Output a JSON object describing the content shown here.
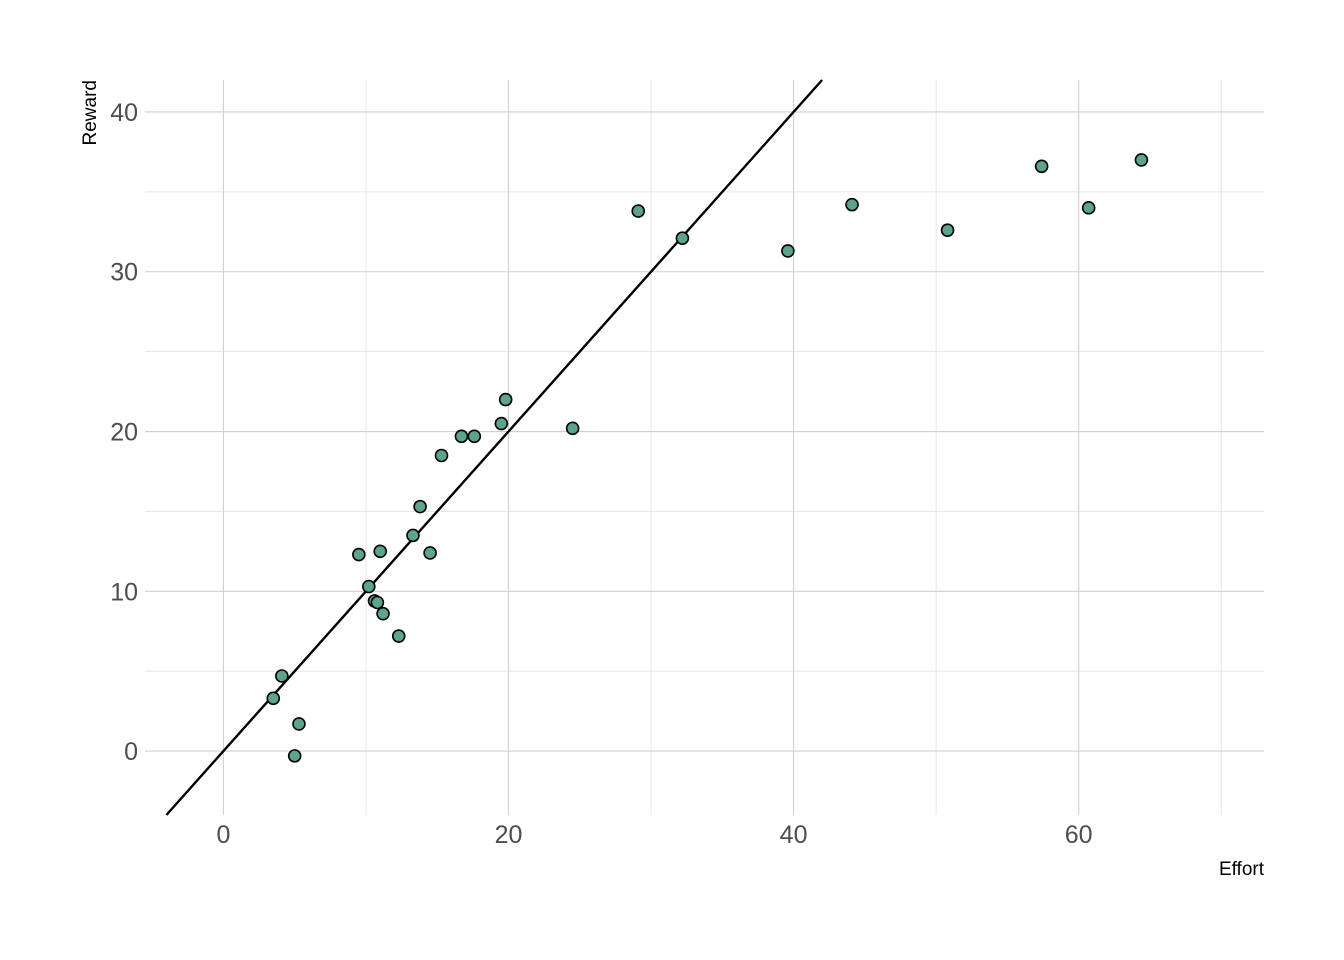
{
  "chart_data": {
    "type": "scatter",
    "title": "",
    "xlabel": "Effort",
    "ylabel": "Reward",
    "xlim": [
      -5.5,
      73
    ],
    "ylim": [
      -4,
      42
    ],
    "x_ticks": [
      0,
      20,
      40,
      60
    ],
    "x_tick_labels": [
      "0",
      "20",
      "40",
      "60"
    ],
    "y_ticks": [
      0,
      10,
      20,
      30,
      40
    ],
    "y_tick_labels": [
      "0",
      "10",
      "20",
      "30",
      "40"
    ],
    "x_minor": [
      10,
      30,
      50,
      70
    ],
    "y_minor": [
      5,
      15,
      25,
      35
    ],
    "grid": true,
    "point_color": "#5aa688",
    "reference_line": {
      "slope": 1,
      "intercept": 0,
      "color": "#000000"
    },
    "points": [
      {
        "x": 3.5,
        "y": 3.3
      },
      {
        "x": 4.1,
        "y": 4.7
      },
      {
        "x": 5.0,
        "y": -0.3
      },
      {
        "x": 5.3,
        "y": 1.7
      },
      {
        "x": 9.5,
        "y": 12.3
      },
      {
        "x": 10.2,
        "y": 10.3
      },
      {
        "x": 10.6,
        "y": 9.4
      },
      {
        "x": 10.8,
        "y": 9.3
      },
      {
        "x": 11.0,
        "y": 12.5
      },
      {
        "x": 11.2,
        "y": 8.6
      },
      {
        "x": 12.3,
        "y": 7.2
      },
      {
        "x": 13.3,
        "y": 13.5
      },
      {
        "x": 13.8,
        "y": 15.3
      },
      {
        "x": 14.5,
        "y": 12.4
      },
      {
        "x": 15.3,
        "y": 18.5
      },
      {
        "x": 16.7,
        "y": 19.7
      },
      {
        "x": 17.6,
        "y": 19.7
      },
      {
        "x": 19.5,
        "y": 20.5
      },
      {
        "x": 19.8,
        "y": 22.0
      },
      {
        "x": 24.5,
        "y": 20.2
      },
      {
        "x": 29.1,
        "y": 33.8
      },
      {
        "x": 32.2,
        "y": 32.1
      },
      {
        "x": 39.6,
        "y": 31.3
      },
      {
        "x": 44.1,
        "y": 34.2
      },
      {
        "x": 50.8,
        "y": 32.6
      },
      {
        "x": 57.4,
        "y": 36.6
      },
      {
        "x": 60.7,
        "y": 34.0
      },
      {
        "x": 64.4,
        "y": 37.0
      }
    ]
  }
}
